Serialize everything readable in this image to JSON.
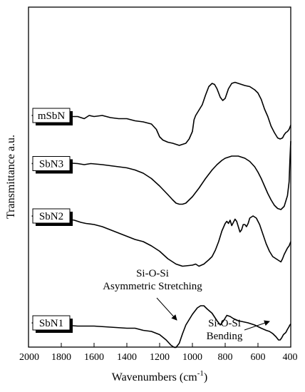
{
  "chart_data": {
    "type": "line",
    "title": "",
    "xlabel": "Wavenumbers (cm",
    "xlabel_sup": "-1",
    "xlabel_close": ")",
    "ylabel": "Transmittance a.u.",
    "xlim": [
      2000,
      400
    ],
    "x_reversed": true,
    "xticks": [
      2000,
      1800,
      1600,
      1400,
      1200,
      1000,
      800,
      600,
      400
    ],
    "yticks": "none",
    "grid": false,
    "series": [
      {
        "name": "mSbN",
        "points": [
          [
            1980,
            72
          ],
          [
            1900,
            72
          ],
          [
            1800,
            71
          ],
          [
            1700,
            71
          ],
          [
            1660,
            69
          ],
          [
            1630,
            72
          ],
          [
            1600,
            71
          ],
          [
            1550,
            72
          ],
          [
            1500,
            70
          ],
          [
            1450,
            69
          ],
          [
            1400,
            69
          ],
          [
            1350,
            67
          ],
          [
            1300,
            66
          ],
          [
            1250,
            64
          ],
          [
            1220,
            59
          ],
          [
            1200,
            52
          ],
          [
            1180,
            49
          ],
          [
            1150,
            47
          ],
          [
            1120,
            46
          ],
          [
            1100,
            45
          ],
          [
            1080,
            44
          ],
          [
            1060,
            45
          ],
          [
            1040,
            46
          ],
          [
            1020,
            50
          ],
          [
            1000,
            57
          ],
          [
            990,
            68
          ],
          [
            980,
            72
          ],
          [
            960,
            77
          ],
          [
            940,
            82
          ],
          [
            920,
            91
          ],
          [
            900,
            99
          ],
          [
            880,
            102
          ],
          [
            865,
            101
          ],
          [
            850,
            97
          ],
          [
            830,
            89
          ],
          [
            815,
            86
          ],
          [
            800,
            88
          ],
          [
            780,
            97
          ],
          [
            760,
            102
          ],
          [
            740,
            103
          ],
          [
            720,
            102
          ],
          [
            700,
            101
          ],
          [
            680,
            100
          ],
          [
            650,
            99
          ],
          [
            620,
            96
          ],
          [
            600,
            93
          ],
          [
            580,
            87
          ],
          [
            560,
            78
          ],
          [
            540,
            71
          ],
          [
            520,
            62
          ],
          [
            500,
            56
          ],
          [
            480,
            51
          ],
          [
            465,
            50
          ],
          [
            450,
            51
          ],
          [
            440,
            54
          ],
          [
            430,
            56
          ],
          [
            420,
            57
          ],
          [
            410,
            59
          ],
          [
            400,
            63
          ]
        ]
      },
      {
        "name": "SbN3",
        "points": [
          [
            1980,
            27
          ],
          [
            1900,
            28
          ],
          [
            1800,
            28
          ],
          [
            1700,
            27
          ],
          [
            1660,
            26
          ],
          [
            1620,
            27
          ],
          [
            1550,
            26
          ],
          [
            1500,
            25
          ],
          [
            1450,
            24
          ],
          [
            1400,
            23
          ],
          [
            1350,
            21
          ],
          [
            1300,
            18
          ],
          [
            1250,
            13
          ],
          [
            1200,
            6
          ],
          [
            1150,
            -2
          ],
          [
            1120,
            -7
          ],
          [
            1100,
            -10
          ],
          [
            1080,
            -11
          ],
          [
            1060,
            -11
          ],
          [
            1040,
            -10
          ],
          [
            1000,
            -4
          ],
          [
            960,
            4
          ],
          [
            920,
            13
          ],
          [
            880,
            21
          ],
          [
            850,
            26
          ],
          [
            820,
            30
          ],
          [
            800,
            32
          ],
          [
            780,
            33
          ],
          [
            760,
            34
          ],
          [
            740,
            34
          ],
          [
            720,
            34
          ],
          [
            700,
            33
          ],
          [
            680,
            32
          ],
          [
            650,
            29
          ],
          [
            620,
            24
          ],
          [
            600,
            19
          ],
          [
            580,
            13
          ],
          [
            560,
            6
          ],
          [
            540,
            -1
          ],
          [
            520,
            -7
          ],
          [
            500,
            -12
          ],
          [
            480,
            -15
          ],
          [
            460,
            -16
          ],
          [
            440,
            -13
          ],
          [
            420,
            -3
          ],
          [
            410,
            10
          ],
          [
            405,
            30
          ],
          [
            400,
            48
          ]
        ]
      },
      {
        "name": "SbN2",
        "points": [
          [
            1980,
            -22
          ],
          [
            1900,
            -24
          ],
          [
            1800,
            -24
          ],
          [
            1720,
            -26
          ],
          [
            1680,
            -28
          ],
          [
            1650,
            -29
          ],
          [
            1600,
            -30
          ],
          [
            1550,
            -32
          ],
          [
            1500,
            -35
          ],
          [
            1450,
            -38
          ],
          [
            1400,
            -41
          ],
          [
            1350,
            -44
          ],
          [
            1300,
            -46
          ],
          [
            1250,
            -50
          ],
          [
            1200,
            -55
          ],
          [
            1150,
            -62
          ],
          [
            1100,
            -67
          ],
          [
            1060,
            -69
          ],
          [
            1000,
            -68
          ],
          [
            980,
            -67
          ],
          [
            960,
            -69
          ],
          [
            930,
            -67
          ],
          [
            900,
            -63
          ],
          [
            880,
            -60
          ],
          [
            860,
            -54
          ],
          [
            840,
            -46
          ],
          [
            820,
            -36
          ],
          [
            800,
            -29
          ],
          [
            790,
            -27
          ],
          [
            780,
            -29
          ],
          [
            770,
            -26
          ],
          [
            760,
            -31
          ],
          [
            750,
            -28
          ],
          [
            740,
            -25
          ],
          [
            730,
            -27
          ],
          [
            720,
            -32
          ],
          [
            710,
            -37
          ],
          [
            700,
            -35
          ],
          [
            690,
            -30
          ],
          [
            680,
            -30
          ],
          [
            670,
            -32
          ],
          [
            660,
            -29
          ],
          [
            650,
            -24
          ],
          [
            630,
            -22
          ],
          [
            610,
            -24
          ],
          [
            590,
            -30
          ],
          [
            570,
            -39
          ],
          [
            550,
            -48
          ],
          [
            530,
            -55
          ],
          [
            510,
            -60
          ],
          [
            490,
            -62
          ],
          [
            470,
            -64
          ],
          [
            460,
            -65
          ],
          [
            450,
            -62
          ],
          [
            440,
            -58
          ],
          [
            430,
            -55
          ],
          [
            420,
            -52
          ],
          [
            410,
            -50
          ],
          [
            400,
            -46
          ]
        ]
      },
      {
        "name": "SbN1",
        "points": [
          [
            1980,
            -122
          ],
          [
            1900,
            -123
          ],
          [
            1800,
            -124
          ],
          [
            1700,
            -125
          ],
          [
            1600,
            -125
          ],
          [
            1500,
            -126
          ],
          [
            1400,
            -127
          ],
          [
            1350,
            -127
          ],
          [
            1300,
            -129
          ],
          [
            1250,
            -130
          ],
          [
            1200,
            -133
          ],
          [
            1160,
            -138
          ],
          [
            1130,
            -143
          ],
          [
            1110,
            -145
          ],
          [
            1100,
            -145
          ],
          [
            1080,
            -141
          ],
          [
            1060,
            -132
          ],
          [
            1040,
            -124
          ],
          [
            1000,
            -114
          ],
          [
            970,
            -108
          ],
          [
            950,
            -106
          ],
          [
            930,
            -106
          ],
          [
            910,
            -109
          ],
          [
            880,
            -113
          ],
          [
            850,
            -120
          ],
          [
            830,
            -124
          ],
          [
            810,
            -120
          ],
          [
            790,
            -115
          ],
          [
            770,
            -116
          ],
          [
            750,
            -118
          ],
          [
            720,
            -120
          ],
          [
            690,
            -121
          ],
          [
            660,
            -122
          ],
          [
            620,
            -124
          ],
          [
            580,
            -127
          ],
          [
            550,
            -129
          ],
          [
            530,
            -130
          ],
          [
            510,
            -132
          ],
          [
            490,
            -135
          ],
          [
            475,
            -138
          ],
          [
            465,
            -138
          ],
          [
            455,
            -136
          ],
          [
            445,
            -133
          ],
          [
            430,
            -131
          ],
          [
            420,
            -128
          ],
          [
            412,
            -126
          ],
          [
            405,
            -124
          ],
          [
            400,
            -123
          ]
        ]
      }
    ],
    "annotations": [
      {
        "lines": [
          "Si-O-Si",
          "Asymmetric Stretching"
        ]
      },
      {
        "lines": [
          "Si-O-Si",
          "Bending"
        ]
      }
    ]
  }
}
